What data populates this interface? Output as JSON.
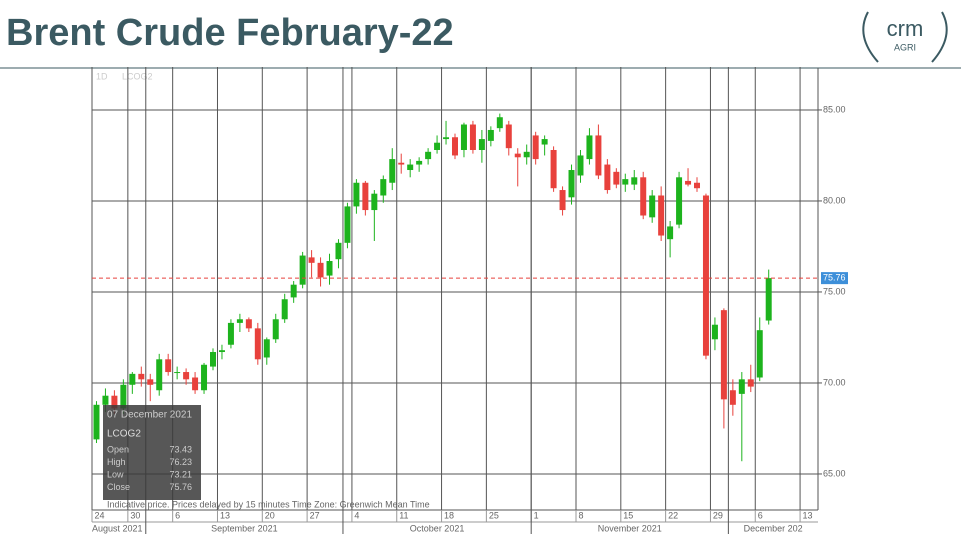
{
  "header": {
    "title": "Brent Crude February-22",
    "logo": {
      "name": "crm",
      "sub": "AGRI"
    }
  },
  "chart_data": {
    "type": "candlestick",
    "interval": "1D",
    "symbol": "LCOG2",
    "up_color": "#1db31d",
    "down_color": "#e8413c",
    "open": [
      66.9,
      68.8,
      69.3,
      68.6,
      69.9,
      70.5,
      70.2,
      69.6,
      71.3,
      70.6,
      70.6,
      70.3,
      69.6,
      70.9,
      71.7,
      72.1,
      73.3,
      73.5,
      73.0,
      71.4,
      72.4,
      73.5,
      74.7,
      75.4,
      76.9,
      76.6,
      75.9,
      76.8,
      77.7,
      79.7,
      81.0,
      79.5,
      80.3,
      81.0,
      82.1,
      81.7,
      82.0,
      82.3,
      82.8,
      83.4,
      83.5,
      82.8,
      84.2,
      82.8,
      83.3,
      84.0,
      84.2,
      82.6,
      82.4,
      83.6,
      83.1,
      82.8,
      80.6,
      80.2,
      81.4,
      82.3,
      83.6,
      82.0,
      81.6,
      80.9,
      80.9,
      81.3,
      79.1,
      80.3,
      77.9,
      78.7,
      81.1,
      81.0,
      80.3,
      72.4,
      74.0,
      69.6,
      69.4,
      70.2,
      70.3,
      73.43
    ],
    "high": [
      69.0,
      69.7,
      69.6,
      70.2,
      70.6,
      70.9,
      70.5,
      71.6,
      71.6,
      70.9,
      70.8,
      70.6,
      71.1,
      71.9,
      72.1,
      73.5,
      73.8,
      73.6,
      73.3,
      72.5,
      73.8,
      74.9,
      75.6,
      77.2,
      77.3,
      76.9,
      77.1,
      77.9,
      79.9,
      81.2,
      81.1,
      80.6,
      81.4,
      82.9,
      82.6,
      82.3,
      82.4,
      82.9,
      83.6,
      84.4,
      83.7,
      84.3,
      84.4,
      83.9,
      84.1,
      84.8,
      84.4,
      82.9,
      83.1,
      83.8,
      83.6,
      83.0,
      80.8,
      82.0,
      82.8,
      84.0,
      84.2,
      82.3,
      81.8,
      81.5,
      81.7,
      81.6,
      80.6,
      80.8,
      78.9,
      81.6,
      81.8,
      81.3,
      80.4,
      73.6,
      74.1,
      70.2,
      70.6,
      71.0,
      73.6,
      76.23
    ],
    "low": [
      66.7,
      68.4,
      68.3,
      68.3,
      69.4,
      69.8,
      69.0,
      69.3,
      70.4,
      70.2,
      69.9,
      69.4,
      69.4,
      70.7,
      71.3,
      71.9,
      72.8,
      72.8,
      71.0,
      71.0,
      72.2,
      73.3,
      74.4,
      75.2,
      75.8,
      75.3,
      75.4,
      76.3,
      77.4,
      79.3,
      79.2,
      77.8,
      79.9,
      80.6,
      81.5,
      81.3,
      81.6,
      82.0,
      82.6,
      83.1,
      82.3,
      82.4,
      82.6,
      82.1,
      83.0,
      83.8,
      82.5,
      80.8,
      82.0,
      82.0,
      82.5,
      80.5,
      79.2,
      79.8,
      81.0,
      82.0,
      81.2,
      80.4,
      80.7,
      80.5,
      80.6,
      79.0,
      78.8,
      77.8,
      76.9,
      78.5,
      80.8,
      80.5,
      71.3,
      71.8,
      67.5,
      68.2,
      65.7,
      69.5,
      70.1,
      73.21
    ],
    "close": [
      68.8,
      69.3,
      68.6,
      69.9,
      70.5,
      70.2,
      69.9,
      71.3,
      70.6,
      70.6,
      70.2,
      69.6,
      71.0,
      71.7,
      71.8,
      73.3,
      73.5,
      73.0,
      71.3,
      72.4,
      73.5,
      74.6,
      75.4,
      77.0,
      76.6,
      75.8,
      76.7,
      77.7,
      79.7,
      81.0,
      79.5,
      80.4,
      81.2,
      82.3,
      82.0,
      82.0,
      82.2,
      82.7,
      83.2,
      83.5,
      82.5,
      84.2,
      82.8,
      83.4,
      83.9,
      84.6,
      82.9,
      82.4,
      82.7,
      82.3,
      83.4,
      80.7,
      79.5,
      81.7,
      82.5,
      83.6,
      81.4,
      80.6,
      80.9,
      81.2,
      81.3,
      79.2,
      80.3,
      78.1,
      78.6,
      81.3,
      80.9,
      80.7,
      71.5,
      73.2,
      69.1,
      68.8,
      70.2,
      69.8,
      72.9,
      75.76
    ],
    "xlim": [
      -0.5,
      80.5
    ],
    "xticks": [
      {
        "value": 0,
        "label": "24"
      },
      {
        "value": 4,
        "label": "30"
      },
      {
        "value": 9,
        "label": "6"
      },
      {
        "value": 14,
        "label": "13"
      },
      {
        "value": 19,
        "label": "20"
      },
      {
        "value": 24,
        "label": "27"
      },
      {
        "value": 29,
        "label": "4"
      },
      {
        "value": 34,
        "label": "11"
      },
      {
        "value": 39,
        "label": "18"
      },
      {
        "value": 44,
        "label": "25"
      },
      {
        "value": 49,
        "label": "1"
      },
      {
        "value": 54,
        "label": "8"
      },
      {
        "value": 59,
        "label": "15"
      },
      {
        "value": 64,
        "label": "22"
      },
      {
        "value": 69,
        "label": "29"
      },
      {
        "value": 74,
        "label": "6"
      },
      {
        "value": 79,
        "label": "13"
      }
    ],
    "months": [
      {
        "value": 0,
        "label": "August 2021"
      },
      {
        "value": 6,
        "label": "September 2021"
      },
      {
        "value": 28,
        "label": "October 2021"
      },
      {
        "value": 49,
        "label": "November 2021"
      },
      {
        "value": 71,
        "label": "December 202"
      }
    ],
    "ylim": [
      63.02,
      87.36
    ],
    "yticks": [
      {
        "value": 65,
        "label": "65.00"
      },
      {
        "value": 70,
        "label": "70.00"
      },
      {
        "value": 75,
        "label": "75.00"
      },
      {
        "value": 80,
        "label": "80.00"
      },
      {
        "value": 85,
        "label": "85.00"
      }
    ],
    "grid": true,
    "last_price": {
      "value": 75.76,
      "label": "75.76",
      "color": "#e8413c"
    },
    "tooltip": {
      "date": "07 December 2021",
      "fields": [
        "Open",
        "High",
        "Low",
        "Close"
      ]
    },
    "footnote": "Indicative price. Prices delayed by 15 minutes    Time Zone: Greenwich Mean Time"
  }
}
